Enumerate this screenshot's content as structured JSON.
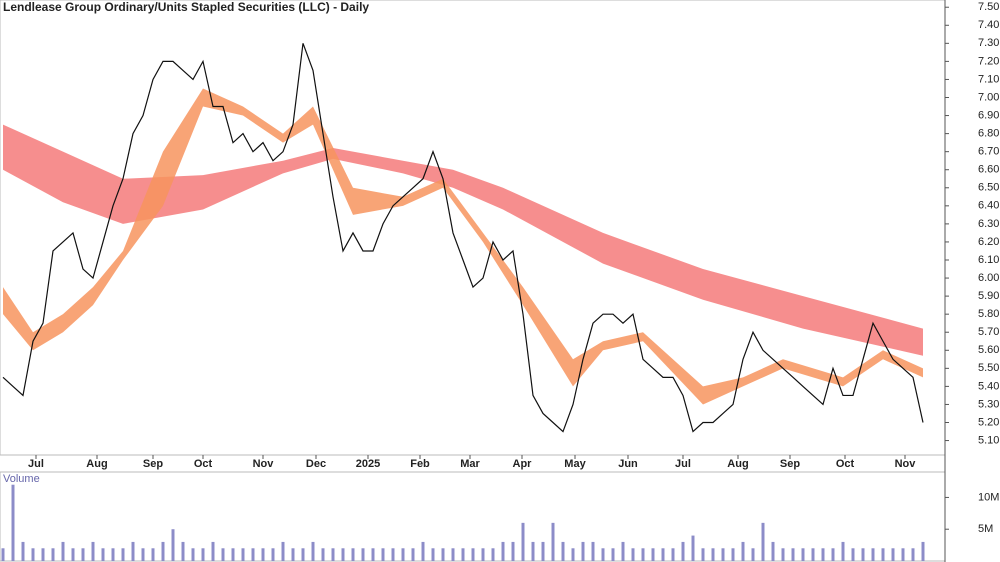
{
  "chart_data": [
    {
      "type": "line",
      "title": "Lendlease Group Ordinary/Units Stapled Securities (LLC) - Daily",
      "color": "#111111",
      "values": [
        5.45,
        5.4,
        5.35,
        5.65,
        5.75,
        6.15,
        6.2,
        6.25,
        6.05,
        6.0,
        6.2,
        6.4,
        6.55,
        6.8,
        6.9,
        7.1,
        7.2,
        7.2,
        7.15,
        7.1,
        7.2,
        6.95,
        6.95,
        6.75,
        6.8,
        6.7,
        6.75,
        6.65,
        6.7,
        6.85,
        7.3,
        7.15,
        6.8,
        6.45,
        6.15,
        6.25,
        6.15,
        6.15,
        6.3,
        6.4,
        6.45,
        6.5,
        6.55,
        6.7,
        6.55,
        6.25,
        6.1,
        5.95,
        6.0,
        6.2,
        6.1,
        6.15,
        5.8,
        5.35,
        5.25,
        5.2,
        5.15,
        5.3,
        5.55,
        5.75,
        5.8,
        5.8,
        5.75,
        5.8,
        5.55,
        5.5,
        5.45,
        5.45,
        5.35,
        5.15,
        5.2,
        5.2,
        5.25,
        5.3,
        5.55,
        5.7,
        5.6,
        5.55,
        5.5,
        5.45,
        5.4,
        5.35,
        5.3,
        5.5,
        5.35,
        5.35,
        5.55,
        5.75,
        5.65,
        5.55,
        5.5,
        5.45,
        5.2
      ],
      "bands": [
        {
          "color": "#f47a7a",
          "x": [
            0,
            6,
            12,
            20,
            28,
            33,
            40,
            45,
            50,
            60,
            70,
            80,
            92
          ],
          "upper": [
            6.85,
            6.7,
            6.55,
            6.57,
            6.65,
            6.72,
            6.65,
            6.6,
            6.5,
            6.25,
            6.05,
            5.9,
            5.72
          ],
          "lower": [
            6.6,
            6.42,
            6.3,
            6.38,
            6.58,
            6.66,
            6.58,
            6.5,
            6.38,
            6.08,
            5.88,
            5.72,
            5.57
          ]
        },
        {
          "color": "#f7945e",
          "x": [
            0,
            3,
            6,
            9,
            12,
            16,
            20,
            24,
            28,
            31,
            35,
            40,
            44,
            48,
            52,
            57,
            60,
            64,
            70,
            74,
            78,
            84,
            88,
            92
          ],
          "upper": [
            5.95,
            5.7,
            5.8,
            5.95,
            6.15,
            6.7,
            7.05,
            6.95,
            6.8,
            6.95,
            6.5,
            6.45,
            6.55,
            6.25,
            5.95,
            5.55,
            5.65,
            5.7,
            5.4,
            5.45,
            5.55,
            5.45,
            5.6,
            5.5
          ],
          "lower": [
            5.8,
            5.6,
            5.7,
            5.85,
            6.1,
            6.4,
            6.95,
            6.9,
            6.75,
            6.85,
            6.35,
            6.4,
            6.5,
            6.2,
            5.85,
            5.4,
            5.6,
            5.65,
            5.3,
            5.4,
            5.5,
            5.4,
            5.55,
            5.45
          ]
        }
      ],
      "xlim": [
        -0.3,
        94.2
      ],
      "xticks": [
        {
          "value": 3.3,
          "label": "Jul"
        },
        {
          "value": 9.4,
          "label": "Aug"
        },
        {
          "value": 15,
          "label": "Sep"
        },
        {
          "value": 20,
          "label": "Oct"
        },
        {
          "value": 26,
          "label": "Nov"
        },
        {
          "value": 31.3,
          "label": "Dec"
        },
        {
          "value": 36.5,
          "label": "2025"
        },
        {
          "value": 41.7,
          "label": "Feb"
        },
        {
          "value": 46.7,
          "label": "Mar"
        },
        {
          "value": 51.9,
          "label": "Apr"
        },
        {
          "value": 57.2,
          "label": "May"
        },
        {
          "value": 62.5,
          "label": "Jun"
        },
        {
          "value": 68,
          "label": "Jul"
        },
        {
          "value": 73.5,
          "label": "Aug"
        },
        {
          "value": 78.7,
          "label": "Sep"
        },
        {
          "value": 84.2,
          "label": "Oct"
        },
        {
          "value": 90.2,
          "label": "Nov"
        }
      ],
      "ylim": [
        5.02,
        7.54
      ],
      "yticks": [
        {
          "value": 5.1,
          "label": "5.10"
        },
        {
          "value": 5.2,
          "label": "5.20"
        },
        {
          "value": 5.3,
          "label": "5.30"
        },
        {
          "value": 5.4,
          "label": "5.40"
        },
        {
          "value": 5.5,
          "label": "5.50"
        },
        {
          "value": 5.6,
          "label": "5.60"
        },
        {
          "value": 5.7,
          "label": "5.70"
        },
        {
          "value": 5.8,
          "label": "5.80"
        },
        {
          "value": 5.9,
          "label": "5.90"
        },
        {
          "value": 6.0,
          "label": "6.00"
        },
        {
          "value": 6.1,
          "label": "6.10"
        },
        {
          "value": 6.2,
          "label": "6.20"
        },
        {
          "value": 6.3,
          "label": "6.30"
        },
        {
          "value": 6.4,
          "label": "6.40"
        },
        {
          "value": 6.5,
          "label": "6.50"
        },
        {
          "value": 6.6,
          "label": "6.60"
        },
        {
          "value": 6.7,
          "label": "6.70"
        },
        {
          "value": 6.8,
          "label": "6.80"
        },
        {
          "value": 6.9,
          "label": "6.90"
        },
        {
          "value": 7.0,
          "label": "7.00"
        },
        {
          "value": 7.1,
          "label": "7.10"
        },
        {
          "value": 7.2,
          "label": "7.20"
        },
        {
          "value": 7.3,
          "label": "7.30"
        },
        {
          "value": 7.4,
          "label": "7.40"
        },
        {
          "value": 7.5,
          "label": "7.50"
        }
      ]
    },
    {
      "type": "bar",
      "title": "Volume",
      "color": "#8c8cc8",
      "values": [
        2,
        12,
        3,
        2,
        2,
        2,
        3,
        2,
        2,
        3,
        2,
        2,
        2,
        3,
        2,
        2,
        3,
        5,
        3,
        2,
        2,
        3,
        2,
        2,
        2,
        2,
        2,
        2,
        3,
        2,
        2,
        3,
        2,
        2,
        2,
        2,
        2,
        2,
        2,
        2,
        2,
        2,
        3,
        2,
        2,
        2,
        2,
        2,
        2,
        2,
        3,
        3,
        6,
        3,
        3,
        6,
        3,
        2,
        3,
        3,
        2,
        2,
        3,
        2,
        2,
        2,
        2,
        2,
        3,
        4,
        2,
        2,
        2,
        2,
        3,
        2,
        6,
        3,
        2,
        2,
        2,
        2,
        2,
        2,
        3,
        2,
        2,
        2,
        2,
        2,
        2,
        2,
        3
      ],
      "ylim": [
        0,
        14
      ],
      "yticks": [
        {
          "value": 5,
          "label": "5M"
        },
        {
          "value": 10,
          "label": "10M"
        }
      ]
    }
  ]
}
